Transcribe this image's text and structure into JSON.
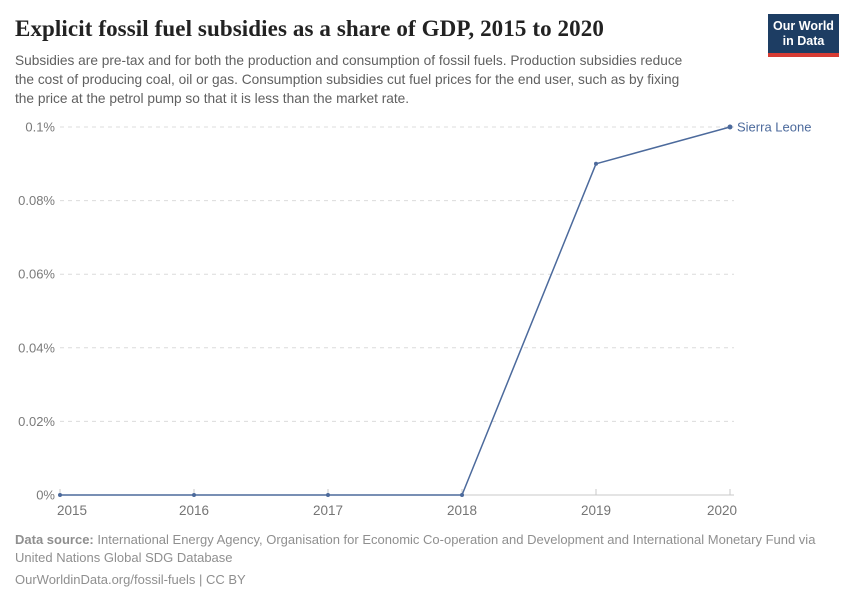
{
  "header": {
    "title": "Explicit fossil fuel subsidies as a share of GDP, 2015 to 2020",
    "subtitle_lines": [
      "Subsidies are pre-tax and for both the production and consumption of fossil fuels. Production subsidies reduce",
      "the cost of producing coal, oil or gas. Consumption subsidies cut fuel prices for the end user, such as by fixing",
      "the price at the petrol pump so that it is less than the market rate."
    ],
    "logo": {
      "line1": "Our World",
      "line2": "in Data"
    }
  },
  "chart_data": {
    "type": "line",
    "title": "Explicit fossil fuel subsidies as a share of GDP, 2015 to 2020",
    "x": [
      2015,
      2016,
      2017,
      2018,
      2019,
      2020
    ],
    "xtick_labels": [
      "2015",
      "2016",
      "2017",
      "2018",
      "2019",
      "2020"
    ],
    "series": [
      {
        "name": "Sierra Leone",
        "values": [
          0,
          0,
          0,
          0,
          0.09,
          0.1
        ],
        "color": "#4c6a9c"
      }
    ],
    "unit": "% of GDP",
    "ylim": [
      0,
      0.1
    ],
    "yticks": [
      0,
      0.02,
      0.04,
      0.06,
      0.08,
      0.1
    ],
    "ytick_labels": [
      "0%",
      "0.02%",
      "0.04%",
      "0.06%",
      "0.08%",
      "0.1%"
    ],
    "grid": "horizontal dashed",
    "legend_position": "end-of-line label"
  },
  "footer": {
    "source_label": "Data source:",
    "source_line1_rest": " International Energy Agency, Organisation for Economic Co-operation and Development and International Monetary Fund via",
    "source_line2": "United Nations Global SDG Database",
    "license": "OurWorldinData.org/fossil-fuels | CC BY"
  },
  "colors": {
    "line": "#4c6a9c",
    "title_text": "#222222",
    "subtitle_text": "#606060",
    "axis_text": "#7a7a7a",
    "gridline": "#dcdcdc",
    "axis_line": "#c8c8c8",
    "footer_text": "#8f8f8f",
    "logo_bg": "#1d3d63",
    "logo_bar": "#d73c34"
  }
}
